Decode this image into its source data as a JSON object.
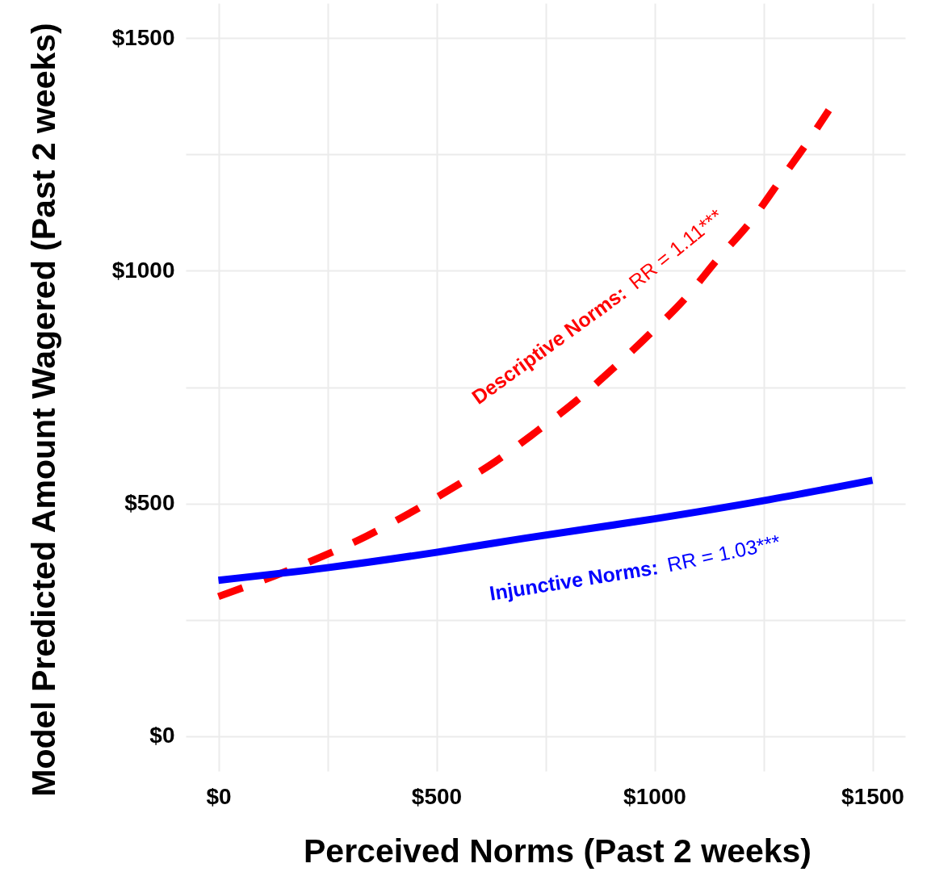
{
  "chart_data": {
    "type": "line",
    "xlabel": "Perceived Norms (Past 2 weeks)",
    "ylabel": "Model Predicted Amount Wagered (Past 2 weeks)",
    "xlim": [
      -75,
      1575
    ],
    "ylim": [
      -75,
      1575
    ],
    "xticks": [
      {
        "value": 0,
        "label": "$0"
      },
      {
        "value": 250,
        "label": null
      },
      {
        "value": 500,
        "label": "$500"
      },
      {
        "value": 750,
        "label": null
      },
      {
        "value": 1000,
        "label": "$1000"
      },
      {
        "value": 1250,
        "label": null
      },
      {
        "value": 1500,
        "label": "$1500"
      }
    ],
    "yticks": [
      {
        "value": 0,
        "label": "$0"
      },
      {
        "value": 250,
        "label": null
      },
      {
        "value": 500,
        "label": "$500"
      },
      {
        "value": 750,
        "label": null
      },
      {
        "value": 1000,
        "label": "$1000"
      },
      {
        "value": 1250,
        "label": null
      },
      {
        "value": 1500,
        "label": "$1500"
      }
    ],
    "grid": true,
    "series": [
      {
        "name": "Descriptive Norms:",
        "color": "#ff0000",
        "line_style": "dashed",
        "x": [
          0,
          130,
          235,
          340,
          440,
          540,
          635,
          730,
          820,
          905,
          990,
          1070,
          1145,
          1220,
          1285,
          1350,
          1400
        ],
        "values": [
          300,
          345,
          385,
          430,
          480,
          535,
          590,
          655,
          720,
          790,
          865,
          940,
          1025,
          1105,
          1190,
          1275,
          1345
        ]
      },
      {
        "name": "Injunctive Norms:",
        "color": "#0000ff",
        "line_style": "solid",
        "x": [
          0,
          250,
          500,
          700,
          1000,
          1250,
          1500
        ],
        "values": [
          335,
          362,
          395,
          425,
          467,
          506,
          550
        ]
      }
    ],
    "annotations": [
      "RR = 1.11***",
      "RR = 1.03***"
    ]
  }
}
